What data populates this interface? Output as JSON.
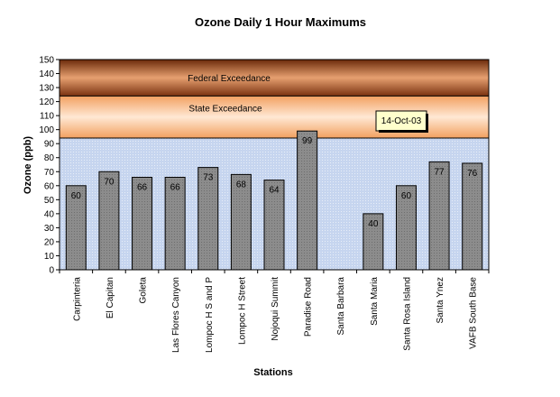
{
  "chart_data": {
    "type": "bar",
    "title": "Ozone Daily 1 Hour Maximums",
    "xlabel": "Stations",
    "ylabel": "Ozone (ppb)",
    "ylim": [
      0,
      150
    ],
    "yticks": [
      0,
      10,
      20,
      30,
      40,
      50,
      60,
      70,
      80,
      90,
      100,
      110,
      120,
      130,
      140,
      150
    ],
    "categories": [
      "Carpinteria",
      "El Capitan",
      "Goleta",
      "Las Flores Canyon",
      "Lompoc H S and P",
      "Lompoc H Street",
      "Nojoqui Summit",
      "Paradise Road",
      "Santa Barbara",
      "Santa Maria",
      "Santa Rosa Island",
      "Santa Ynez",
      "VAFB South Base"
    ],
    "values": [
      60,
      70,
      66,
      66,
      73,
      68,
      64,
      99,
      null,
      40,
      60,
      77,
      76
    ],
    "bands": [
      {
        "label": "Federal Exceedance",
        "from": 124,
        "to": 150
      },
      {
        "label": "State Exceedance",
        "from": 94,
        "to": 124
      }
    ],
    "annotation": "14-Oct-03",
    "grid": false
  },
  "colors": {
    "bar_fill": "#8c8c8c",
    "bar_stroke": "#000000",
    "plot_bg": "#c6d5ef",
    "federal_dark": "#6b2a0a",
    "federal_light": "#e6a070",
    "state_light": "#ffe4cc",
    "state_mid": "#f2a060",
    "annotation_bg": "#ffffcc"
  }
}
